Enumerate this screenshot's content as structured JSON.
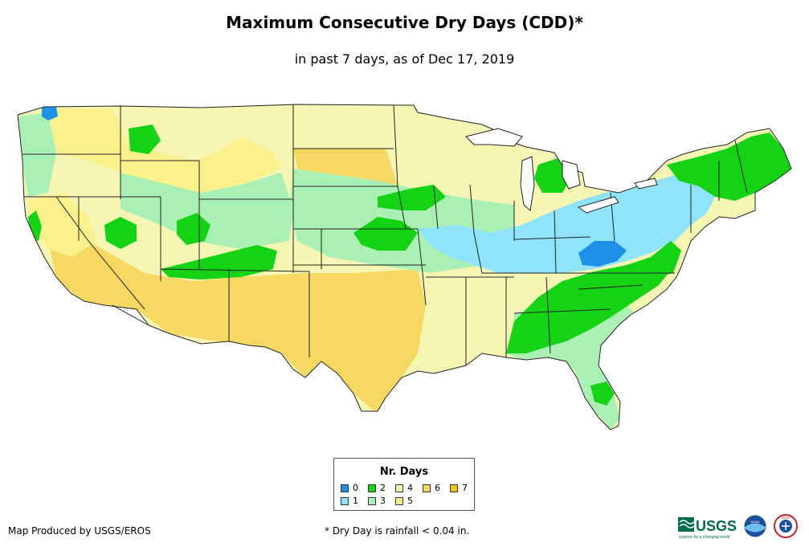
{
  "header": {
    "title": "Maximum Consecutive Dry Days (CDD)*",
    "subtitle": "in past 7 days, as of Dec 17, 2019"
  },
  "legend": {
    "title": "Nr. Days",
    "items": [
      {
        "label": "0",
        "color": "#1E90E8"
      },
      {
        "label": "1",
        "color": "#8FE3FA"
      },
      {
        "label": "2",
        "color": "#14D214"
      },
      {
        "label": "3",
        "color": "#AAF0B4"
      },
      {
        "label": "4",
        "color": "#F5F5B4"
      },
      {
        "label": "5",
        "color": "#FAF08C"
      },
      {
        "label": "6",
        "color": "#F7D862"
      },
      {
        "label": "7",
        "color": "#F2C318"
      }
    ]
  },
  "footer": {
    "producer": "Map Produced by USGS/EROS",
    "note": "* Dry Day is rainfall < 0.04 in."
  },
  "logos": {
    "usgs": "USGS",
    "usgs_tagline": "science for a changing world",
    "noaa": "NOAA",
    "nws": "NWS"
  },
  "colors": {
    "state_border": "#222222",
    "land_default": "#F5F5B4"
  }
}
